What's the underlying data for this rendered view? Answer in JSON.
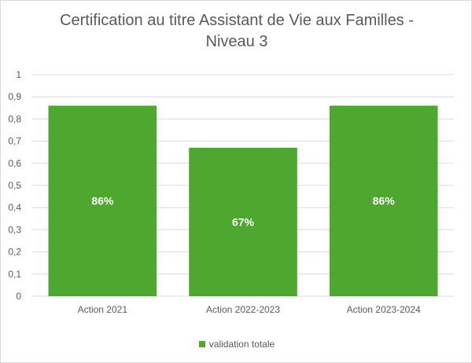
{
  "chart_data": {
    "type": "bar",
    "title_line1": "Certification au titre Assistant de Vie aux Familles -",
    "title_line2": "Niveau 3",
    "categories": [
      "Action 2021",
      "Action 2022-2023",
      "Action 2023-2024"
    ],
    "series": [
      {
        "name": "validation totale",
        "values": [
          0.86,
          0.67,
          0.86
        ],
        "data_labels": [
          "86%",
          "67%",
          "86%"
        ],
        "color": "#4ea72e"
      }
    ],
    "y_ticks": [
      "0",
      "0,1",
      "0,2",
      "0,3",
      "0,4",
      "0,5",
      "0,6",
      "0,7",
      "0,8",
      "0,9",
      "1"
    ],
    "ylim": [
      0,
      1
    ],
    "grid": true,
    "legend_position": "bottom",
    "colors": {
      "gridline": "#d9d9d9",
      "text": "#595959",
      "label": "#ffffff"
    }
  }
}
